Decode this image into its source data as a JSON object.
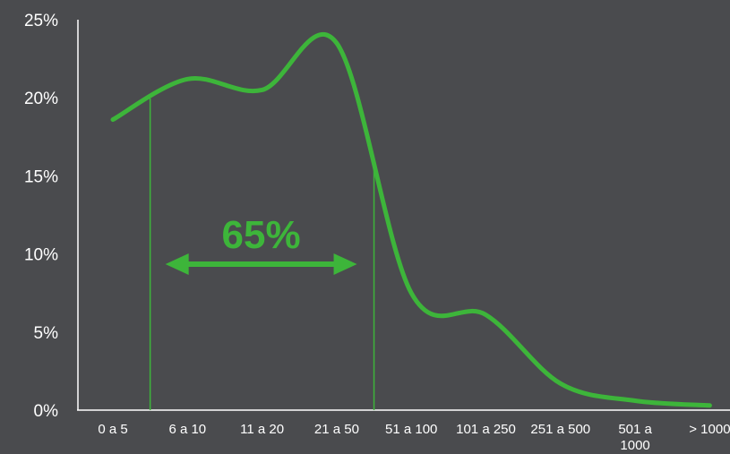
{
  "colors": {
    "background": "#4a4b4e",
    "series": "#3db53a",
    "axis": "#ffffff",
    "text": "#ffffff"
  },
  "chart_data": {
    "type": "line",
    "title": "",
    "xlabel": "",
    "ylabel": "",
    "categories": [
      "0 a 5",
      "6 a 10",
      "11 a 20",
      "21 a 50",
      "51 a 100",
      "101 a 250",
      "251 a 500",
      "501 a 1000",
      "> 1000"
    ],
    "y_ticks": [
      "0%",
      "5%",
      "10%",
      "15%",
      "20%",
      "25%"
    ],
    "ylim": [
      0,
      25
    ],
    "grid": false,
    "legend": "none",
    "series": [
      {
        "values": [
          18.6,
          21.2,
          20.5,
          23.5,
          7.5,
          6.1,
          1.7,
          0.6,
          0.3
        ],
        "smooth": true
      }
    ],
    "annotation": {
      "text": "65%",
      "type": "double-arrow",
      "from_category": "6 a 10",
      "to_category": "21 a 50"
    }
  }
}
